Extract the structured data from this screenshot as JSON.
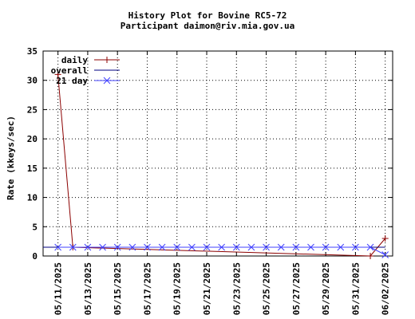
{
  "chart_data": {
    "type": "line",
    "title": "History Plot for Bovine RC5-72",
    "subtitle": "Participant daimon@riv.mia.gov.ua",
    "ylabel": "Rate (kkeys/sec)",
    "xlabel": "",
    "ylim": [
      0,
      35
    ],
    "yticks": [
      0,
      5,
      10,
      15,
      20,
      25,
      30,
      35
    ],
    "x_tick_labels": [
      "05/11/2025",
      "05/13/2025",
      "05/15/2025",
      "05/17/2025",
      "05/19/2025",
      "05/21/2025",
      "05/23/2025",
      "05/25/2025",
      "05/27/2025",
      "05/29/2025",
      "05/31/2025",
      "06/02/2025"
    ],
    "x_tick_dates": [
      "2025-05-11",
      "2025-05-13",
      "2025-05-15",
      "2025-05-17",
      "2025-05-19",
      "2025-05-21",
      "2025-05-23",
      "2025-05-25",
      "2025-05-27",
      "2025-05-29",
      "2025-05-31",
      "2025-06-02"
    ],
    "grid": true,
    "legend_position": "top-left",
    "series": [
      {
        "name": "daily",
        "color": "#8b0000",
        "marker": "plus",
        "points": [
          {
            "x": "2025-05-11",
            "y": 31
          },
          {
            "x": "2025-05-12",
            "y": 1.5
          },
          {
            "x": "2025-06-01",
            "y": 0
          },
          {
            "x": "2025-06-02",
            "y": 3
          }
        ]
      },
      {
        "name": "overall",
        "color": "#000080",
        "marker": "none",
        "points": [
          {
            "x": "2025-05-10",
            "y": 1.5
          },
          {
            "x": "2025-06-02",
            "y": 1.5
          }
        ]
      },
      {
        "name": "21 day",
        "color": "#4040ff",
        "marker": "x",
        "points": [
          {
            "x": "2025-05-11",
            "y": 1.5
          },
          {
            "x": "2025-05-12",
            "y": 1.5
          },
          {
            "x": "2025-05-13",
            "y": 1.5
          },
          {
            "x": "2025-05-14",
            "y": 1.5
          },
          {
            "x": "2025-05-15",
            "y": 1.5
          },
          {
            "x": "2025-05-16",
            "y": 1.5
          },
          {
            "x": "2025-05-17",
            "y": 1.5
          },
          {
            "x": "2025-05-18",
            "y": 1.5
          },
          {
            "x": "2025-05-19",
            "y": 1.5
          },
          {
            "x": "2025-05-20",
            "y": 1.5
          },
          {
            "x": "2025-05-21",
            "y": 1.5
          },
          {
            "x": "2025-05-22",
            "y": 1.5
          },
          {
            "x": "2025-05-23",
            "y": 1.5
          },
          {
            "x": "2025-05-24",
            "y": 1.5
          },
          {
            "x": "2025-05-25",
            "y": 1.5
          },
          {
            "x": "2025-05-26",
            "y": 1.5
          },
          {
            "x": "2025-05-27",
            "y": 1.5
          },
          {
            "x": "2025-05-28",
            "y": 1.5
          },
          {
            "x": "2025-05-29",
            "y": 1.5
          },
          {
            "x": "2025-05-30",
            "y": 1.5
          },
          {
            "x": "2025-05-31",
            "y": 1.5
          },
          {
            "x": "2025-06-01",
            "y": 1.5
          },
          {
            "x": "2025-06-02",
            "y": 0.2
          }
        ]
      }
    ]
  }
}
